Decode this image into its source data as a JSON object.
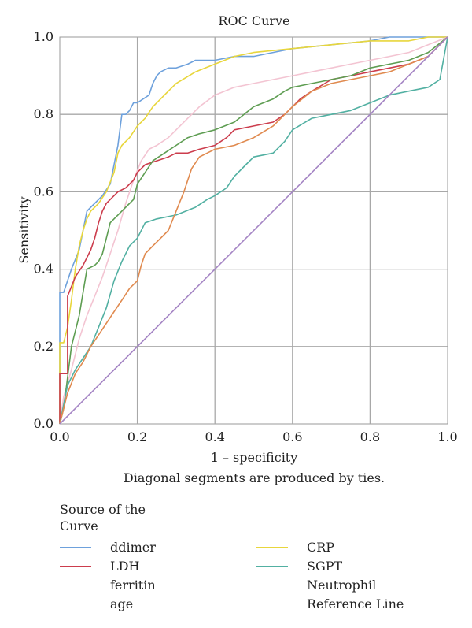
{
  "chart_data": {
    "type": "line",
    "title": "ROC Curve",
    "xlabel": "1 – specificity",
    "ylabel": "Sensitivity",
    "footnote": "Diagonal segments are produced by ties.",
    "xlim": [
      0,
      1
    ],
    "ylim": [
      0,
      1
    ],
    "xticks": [
      "0.0",
      "0.2",
      "0.4",
      "0.6",
      "0.8",
      "1.0"
    ],
    "yticks": [
      "0.0",
      "0.2",
      "0.4",
      "0.6",
      "0.8",
      "1.0"
    ],
    "grid": true,
    "legend_title": "Source of the Curve",
    "legend_placement": "bottom",
    "series": [
      {
        "name": "ddimer",
        "color": "#6ea1dc",
        "x": [
          0,
          0,
          0.01,
          0.02,
          0.03,
          0.05,
          0.06,
          0.07,
          0.08,
          0.1,
          0.11,
          0.13,
          0.14,
          0.15,
          0.16,
          0.17,
          0.18,
          0.19,
          0.2,
          0.23,
          0.24,
          0.25,
          0.26,
          0.28,
          0.3,
          0.33,
          0.35,
          0.4,
          0.45,
          0.5,
          0.55,
          0.6,
          0.7,
          0.8,
          0.85,
          0.9,
          1.0
        ],
        "y": [
          0,
          0.34,
          0.34,
          0.37,
          0.4,
          0.45,
          0.5,
          0.55,
          0.56,
          0.58,
          0.59,
          0.62,
          0.67,
          0.72,
          0.8,
          0.8,
          0.81,
          0.83,
          0.83,
          0.85,
          0.88,
          0.9,
          0.91,
          0.92,
          0.92,
          0.93,
          0.94,
          0.94,
          0.95,
          0.95,
          0.96,
          0.97,
          0.98,
          0.99,
          1.0,
          1.0,
          1.0
        ]
      },
      {
        "name": "CRP",
        "color": "#e8d63c",
        "x": [
          0,
          0,
          0.01,
          0.02,
          0.03,
          0.04,
          0.05,
          0.06,
          0.07,
          0.08,
          0.09,
          0.1,
          0.12,
          0.14,
          0.15,
          0.16,
          0.18,
          0.2,
          0.22,
          0.24,
          0.26,
          0.28,
          0.3,
          0.35,
          0.4,
          0.45,
          0.5,
          0.6,
          0.7,
          0.8,
          0.9,
          0.95,
          1.0
        ],
        "y": [
          0,
          0.21,
          0.21,
          0.25,
          0.32,
          0.4,
          0.46,
          0.5,
          0.53,
          0.55,
          0.56,
          0.57,
          0.6,
          0.65,
          0.7,
          0.72,
          0.74,
          0.77,
          0.79,
          0.82,
          0.84,
          0.86,
          0.88,
          0.91,
          0.93,
          0.95,
          0.96,
          0.97,
          0.98,
          0.99,
          0.99,
          1.0,
          1.0
        ]
      },
      {
        "name": "Neutrophil",
        "color": "#f3c4d2",
        "x": [
          0,
          0.01,
          0.03,
          0.05,
          0.07,
          0.09,
          0.11,
          0.13,
          0.15,
          0.17,
          0.19,
          0.21,
          0.23,
          0.25,
          0.28,
          0.3,
          0.33,
          0.36,
          0.4,
          0.45,
          0.5,
          0.55,
          0.6,
          0.65,
          0.7,
          0.75,
          0.8,
          0.85,
          0.9,
          0.95,
          1.0
        ],
        "y": [
          0,
          0.07,
          0.14,
          0.22,
          0.28,
          0.33,
          0.38,
          0.44,
          0.5,
          0.57,
          0.63,
          0.68,
          0.71,
          0.72,
          0.74,
          0.76,
          0.79,
          0.82,
          0.85,
          0.87,
          0.88,
          0.89,
          0.9,
          0.91,
          0.92,
          0.93,
          0.94,
          0.95,
          0.96,
          0.98,
          1.0
        ]
      },
      {
        "name": "LDH",
        "color": "#cc3d4d",
        "x": [
          0,
          0,
          0.02,
          0.02,
          0.04,
          0.06,
          0.07,
          0.08,
          0.09,
          0.1,
          0.11,
          0.12,
          0.13,
          0.15,
          0.17,
          0.19,
          0.2,
          0.22,
          0.25,
          0.28,
          0.3,
          0.33,
          0.36,
          0.4,
          0.43,
          0.45,
          0.5,
          0.55,
          0.58,
          0.6,
          0.62,
          0.65,
          0.7,
          0.75,
          0.8,
          0.85,
          0.9,
          0.95,
          1.0
        ],
        "y": [
          0,
          0.13,
          0.13,
          0.33,
          0.38,
          0.41,
          0.43,
          0.45,
          0.48,
          0.52,
          0.55,
          0.57,
          0.58,
          0.6,
          0.61,
          0.63,
          0.65,
          0.67,
          0.68,
          0.69,
          0.7,
          0.7,
          0.71,
          0.72,
          0.74,
          0.76,
          0.77,
          0.78,
          0.8,
          0.82,
          0.84,
          0.86,
          0.89,
          0.9,
          0.91,
          0.92,
          0.93,
          0.95,
          1.0
        ]
      },
      {
        "name": "ferritin",
        "color": "#5e9d52",
        "x": [
          0,
          0.01,
          0.02,
          0.03,
          0.05,
          0.07,
          0.09,
          0.1,
          0.11,
          0.12,
          0.13,
          0.15,
          0.17,
          0.19,
          0.2,
          0.22,
          0.24,
          0.27,
          0.3,
          0.33,
          0.36,
          0.4,
          0.45,
          0.5,
          0.55,
          0.58,
          0.6,
          0.65,
          0.7,
          0.75,
          0.8,
          0.85,
          0.9,
          0.95,
          1.0
        ],
        "y": [
          0,
          0.04,
          0.12,
          0.2,
          0.28,
          0.4,
          0.41,
          0.42,
          0.44,
          0.48,
          0.52,
          0.54,
          0.56,
          0.58,
          0.62,
          0.65,
          0.68,
          0.7,
          0.72,
          0.74,
          0.75,
          0.76,
          0.78,
          0.82,
          0.84,
          0.86,
          0.87,
          0.88,
          0.89,
          0.9,
          0.92,
          0.93,
          0.94,
          0.96,
          1.0
        ]
      },
      {
        "name": "SGPT",
        "color": "#52b0a2",
        "x": [
          0,
          0.01,
          0.02,
          0.04,
          0.06,
          0.08,
          0.1,
          0.12,
          0.14,
          0.16,
          0.18,
          0.2,
          0.22,
          0.25,
          0.3,
          0.35,
          0.38,
          0.4,
          0.43,
          0.45,
          0.48,
          0.5,
          0.55,
          0.58,
          0.6,
          0.65,
          0.7,
          0.75,
          0.8,
          0.85,
          0.9,
          0.95,
          0.98,
          1.0
        ],
        "y": [
          0,
          0.05,
          0.1,
          0.14,
          0.17,
          0.2,
          0.25,
          0.3,
          0.37,
          0.42,
          0.46,
          0.48,
          0.52,
          0.53,
          0.54,
          0.56,
          0.58,
          0.59,
          0.61,
          0.64,
          0.67,
          0.69,
          0.7,
          0.73,
          0.76,
          0.79,
          0.8,
          0.81,
          0.83,
          0.85,
          0.86,
          0.87,
          0.89,
          1.0
        ]
      },
      {
        "name": "age",
        "color": "#e08a4f",
        "x": [
          0,
          0.01,
          0.02,
          0.04,
          0.06,
          0.08,
          0.1,
          0.12,
          0.14,
          0.16,
          0.18,
          0.2,
          0.21,
          0.22,
          0.24,
          0.26,
          0.28,
          0.3,
          0.32,
          0.34,
          0.36,
          0.38,
          0.4,
          0.45,
          0.5,
          0.55,
          0.6,
          0.65,
          0.7,
          0.75,
          0.8,
          0.85,
          0.9,
          0.95,
          1.0
        ],
        "y": [
          0,
          0.04,
          0.08,
          0.13,
          0.16,
          0.2,
          0.23,
          0.26,
          0.29,
          0.32,
          0.35,
          0.37,
          0.41,
          0.44,
          0.46,
          0.48,
          0.5,
          0.55,
          0.6,
          0.66,
          0.69,
          0.7,
          0.71,
          0.72,
          0.74,
          0.77,
          0.82,
          0.86,
          0.88,
          0.89,
          0.9,
          0.91,
          0.93,
          0.95,
          1.0
        ]
      },
      {
        "name": "Reference Line",
        "color": "#a484c4",
        "x": [
          0,
          1
        ],
        "y": [
          0,
          1
        ]
      }
    ],
    "legend_order": [
      "ddimer",
      "LDH",
      "ferritin",
      "age",
      "CRP",
      "SGPT",
      "Neutrophil",
      "Reference Line"
    ]
  }
}
